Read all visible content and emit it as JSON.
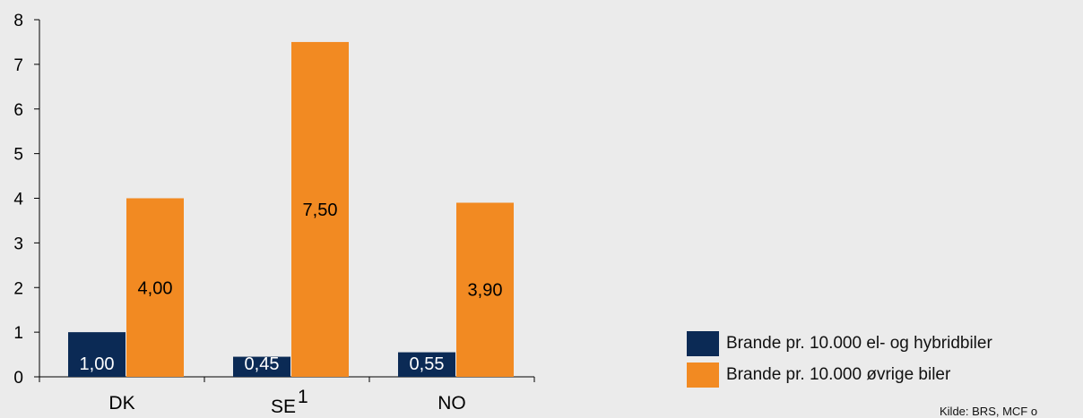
{
  "chart_data": {
    "type": "bar",
    "categories": [
      "DK",
      "SE",
      "NO"
    ],
    "category_superscripts": [
      "",
      "1",
      ""
    ],
    "series": [
      {
        "name": "Brande pr. 10.000 el- og hybridbiler",
        "values": [
          1.0,
          0.45,
          0.55
        ],
        "labels": [
          "1,00",
          "0,45",
          "0,55"
        ],
        "color": "#0b2a55"
      },
      {
        "name": "Brande pr. 10.000 øvrige biler",
        "values": [
          4.0,
          7.5,
          3.9
        ],
        "labels": [
          "4,00",
          "7,50",
          "3,90"
        ],
        "color": "#f28a22"
      }
    ],
    "ylim": [
      0,
      8
    ],
    "yticks": [
      "0",
      "1",
      "2",
      "3",
      "4",
      "5",
      "6",
      "7",
      "8"
    ],
    "title": "",
    "xlabel": "",
    "ylabel": "",
    "grid": false,
    "legend_position": "bottom-right"
  },
  "source": "Kilde: BRS, MCF o"
}
